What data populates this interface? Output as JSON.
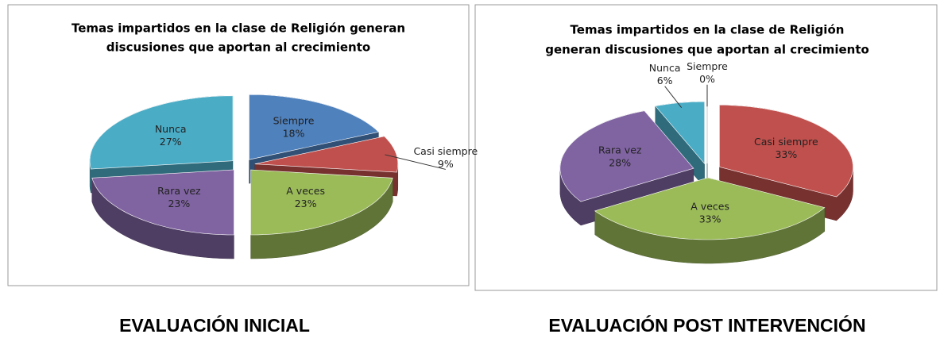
{
  "chart_data": [
    {
      "type": "pie",
      "title": [
        "Temas impartidos en la clase de Religión generan",
        "discusiones que aportan al crecimiento"
      ],
      "caption": "EVALUACIÓN INICIAL",
      "categories": [
        "Siempre",
        "Casi siempre",
        "A veces",
        "Rara vez",
        "Nunca"
      ],
      "values": [
        18,
        9,
        23,
        23,
        27
      ],
      "value_labels": [
        "18%",
        "9%",
        "23%",
        "23%",
        "27%"
      ],
      "colors": [
        "#4f81bd",
        "#c0504d",
        "#9bbb59",
        "#8064a2",
        "#4bacc6"
      ]
    },
    {
      "type": "pie",
      "title": [
        "Temas impartidos en la clase de Religión",
        "generan discusiones que aportan al crecimiento"
      ],
      "caption": "EVALUACIÓN  POST INTERVENCIÓN",
      "categories": [
        "Siempre",
        "Casi siempre",
        "A veces",
        "Rara vez",
        "Nunca"
      ],
      "values": [
        0,
        33,
        33,
        28,
        6
      ],
      "value_labels": [
        "0%",
        "33%",
        "33%",
        "28%",
        "6%"
      ],
      "colors": [
        "#4bacc6",
        "#c0504d",
        "#9bbb59",
        "#8064a2",
        "#4bacc6"
      ]
    }
  ]
}
